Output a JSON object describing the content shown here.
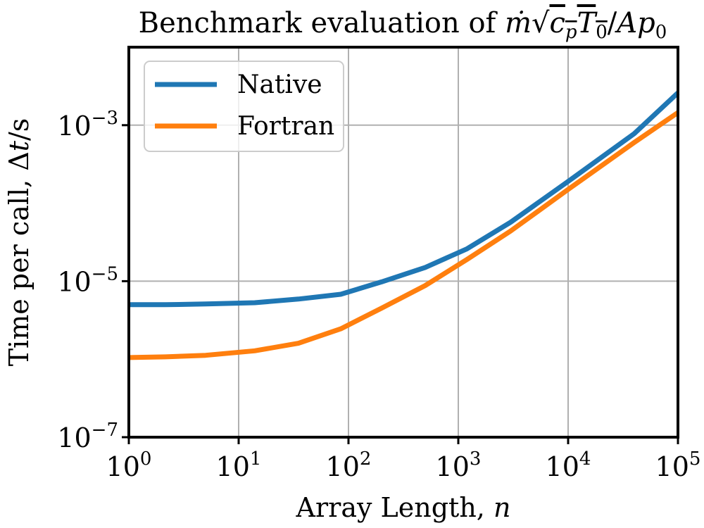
{
  "chart_data": {
    "type": "line",
    "title": "Benchmark evaluation of ṁ√(c_p T_0)/A p_0",
    "xlabel": "Array Length, n",
    "ylabel": "Time per call, Δt/s",
    "xscale": "log",
    "yscale": "log",
    "xlim": [
      1,
      100000
    ],
    "ylim": [
      1e-07,
      0.01
    ],
    "grid": true,
    "legend": "top-left",
    "x_ticks": [
      1,
      10,
      100,
      1000,
      10000,
      100000
    ],
    "y_ticks": [
      1e-07,
      1e-05,
      0.001
    ],
    "series": [
      {
        "name": "Native",
        "color": "#1f77b4",
        "x": [
          1,
          2.15,
          5,
          14,
          35,
          85,
          200,
          500,
          1200,
          3000,
          10000,
          40000,
          100000
        ],
        "y": [
          5e-06,
          5e-06,
          5.1e-06,
          5.3e-06,
          5.9e-06,
          6.8e-06,
          9.8e-06,
          1.5e-05,
          2.6e-05,
          5.7e-05,
          0.00019,
          0.00078,
          0.0026
        ]
      },
      {
        "name": "Fortran",
        "color": "#ff7f0e",
        "x": [
          1,
          2.15,
          5,
          14,
          35,
          85,
          200,
          500,
          1200,
          3000,
          10000,
          40000,
          100000
        ],
        "y": [
          1.05e-06,
          1.07e-06,
          1.12e-06,
          1.28e-06,
          1.6e-06,
          2.45e-06,
          4.5e-06,
          8.8e-06,
          1.9e-05,
          4.4e-05,
          0.00015,
          0.0006,
          0.00145
        ]
      }
    ]
  },
  "labels": {
    "title_prefix": "Benchmark evaluation of ",
    "xlabel_text": "Array Length, ",
    "xlabel_var": "n",
    "ylabel_text": "Time per call, Δ",
    "ylabel_var": "t",
    "ylabel_unit": "/s",
    "x_tick_base": "10",
    "y_tick_base": "10",
    "x_tick_exps": [
      "0",
      "1",
      "2",
      "3",
      "4",
      "5"
    ],
    "y_tick_exps": [
      "−7",
      "−5",
      "−3"
    ]
  }
}
